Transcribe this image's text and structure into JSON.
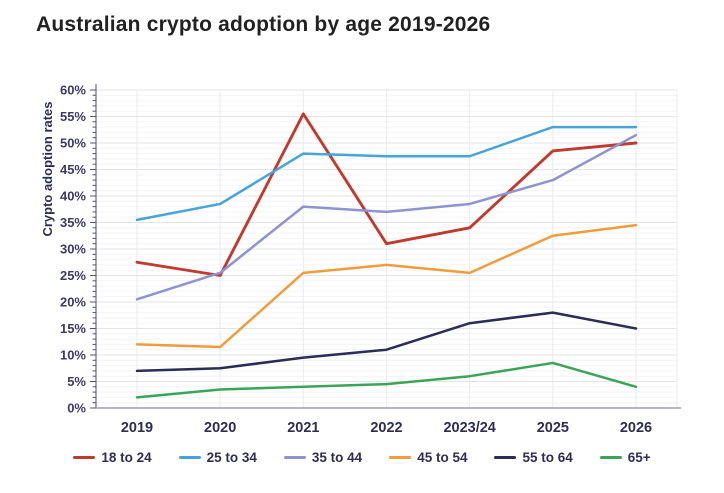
{
  "title": "Australian crypto adoption by age 2019-2026",
  "chart_data": {
    "type": "line",
    "title": "Australian crypto adoption by age 2019-2026",
    "xlabel": "",
    "ylabel": "Crypto adoption rates",
    "categories": [
      "2019",
      "2020",
      "2021",
      "2022",
      "2023/24",
      "2025",
      "2026"
    ],
    "series": [
      {
        "name": "18 to 24",
        "color": "#c03a2e",
        "values": [
          27.5,
          25,
          55.5,
          31,
          34,
          48.5,
          50
        ]
      },
      {
        "name": "25 to 34",
        "color": "#45a5da",
        "values": [
          35.5,
          38.5,
          48,
          47.5,
          47.5,
          53,
          53
        ]
      },
      {
        "name": "35 to 44",
        "color": "#8e94cf",
        "values": [
          20.5,
          25.5,
          38,
          37,
          38.5,
          43,
          51.5
        ]
      },
      {
        "name": "45 to 54",
        "color": "#f09c3a",
        "values": [
          12,
          11.5,
          25.5,
          27,
          25.5,
          32.5,
          34.5
        ]
      },
      {
        "name": "55 to 64",
        "color": "#2a2d55",
        "values": [
          7,
          7.5,
          9.5,
          11,
          16,
          18,
          15
        ]
      },
      {
        "name": "65+",
        "color": "#3aa558",
        "values": [
          2,
          3.5,
          4,
          4.5,
          6,
          8.5,
          4
        ]
      }
    ],
    "ylim": [
      0,
      60
    ],
    "y_tick_step": 5,
    "y_minor_step": 1,
    "y_tick_suffix": "%",
    "grid": "horizontal major+minor, vertical per category",
    "legend_position": "bottom"
  },
  "ui_colors": {
    "title_text": "#212121",
    "axis_text": "#2d2d55",
    "y_tick_text": "#3b3b68",
    "axis_line": "#8585a6",
    "bottom_axis_line": "#9b9bb8",
    "grid_major": "#e3e3ea",
    "grid_minor": "#f4f4f6",
    "grid_vertical": "#ebebf0",
    "background": "#ffffff"
  }
}
